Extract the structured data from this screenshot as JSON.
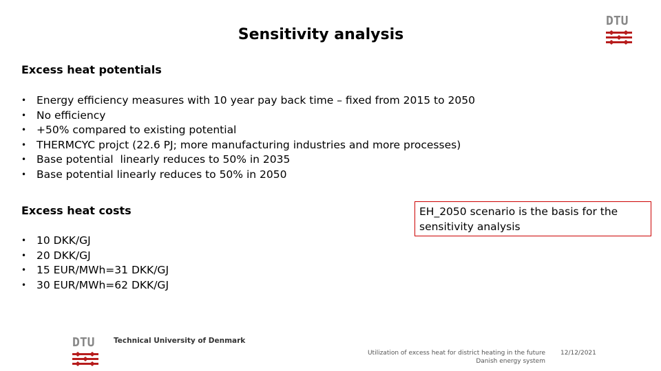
{
  "header": {
    "title": "Sensitivity analysis",
    "logo": "DTU"
  },
  "sections": [
    {
      "heading": "Excess heat potentials",
      "items": [
        "Energy efficiency measures with 10 year pay back time – fixed from 2015 to 2050",
        "No efficiency",
        "+50% compared to existing potential",
        "THERMCYC projct (22.6 PJ; more manufacturing industries and more processes)",
        "Base potential  linearly reduces to 50% in 2035",
        "Base potential linearly reduces to 50% in 2050"
      ]
    },
    {
      "heading": "Excess heat costs",
      "items": [
        "10 DKK/GJ",
        "20 DKK/GJ",
        "15 EUR/MWh=31 DKK/GJ",
        "30 EUR/MWh=62 DKK/GJ"
      ]
    }
  ],
  "note": "EH_2050 scenario is the basis for the sensitivity analysis",
  "footer": {
    "logo": "DTU",
    "university": "Technical University of Denmark",
    "caption": [
      "Utilization of excess heat for district heating in the future",
      "Danish energy system"
    ],
    "date": "12/12/2021"
  }
}
